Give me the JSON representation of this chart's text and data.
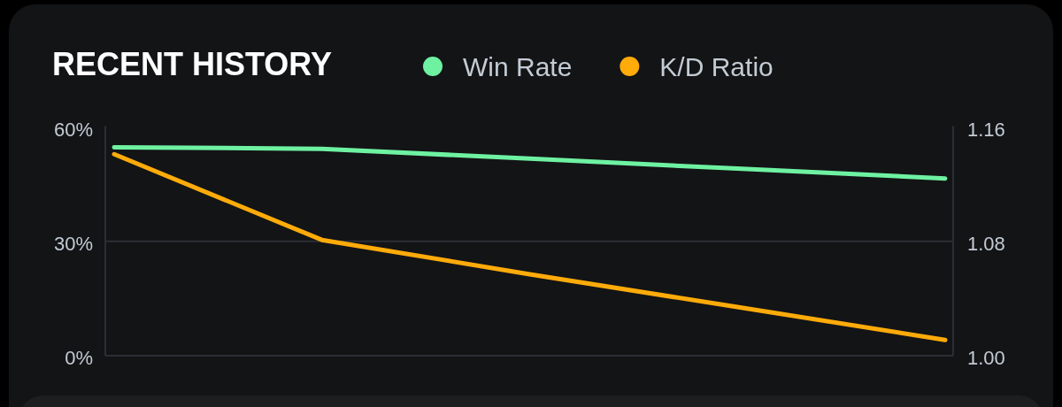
{
  "chart_data": {
    "type": "line",
    "title": "RECENT HISTORY",
    "categories": [
      null,
      null,
      null,
      null,
      null
    ],
    "series": [
      {
        "name": "Win Rate",
        "color": "#6ef2a2",
        "values": [
          54.7,
          54.3,
          51.7,
          49.1,
          46.5
        ]
      },
      {
        "name": "K/D Ratio",
        "color": "#ffab0a",
        "axis": "y2",
        "values": [
          1.141,
          1.081,
          1.057,
          1.034,
          1.011
        ]
      }
    ],
    "ylim": [
      0,
      60
    ],
    "yticks": [
      {
        "value": 0,
        "label": "0%"
      },
      {
        "value": 30,
        "label": "30%"
      },
      {
        "value": 60,
        "label": "60%"
      }
    ],
    "y2lim": [
      1,
      1.16
    ],
    "y2ticks": [
      {
        "value": 1,
        "label": "1.00"
      },
      {
        "value": 1.08,
        "label": "1.08"
      },
      {
        "value": 1.16,
        "label": "1.16"
      }
    ],
    "grid": "y",
    "legend": "top",
    "line_style": "solid"
  }
}
